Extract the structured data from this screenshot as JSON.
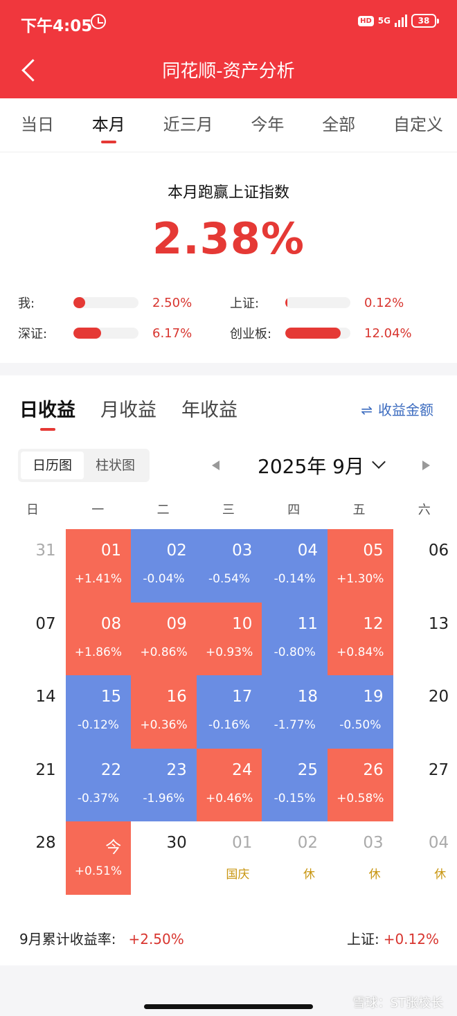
{
  "status_bar": {
    "time": "下午4:05",
    "hd": "HD",
    "network": "5G",
    "battery": "38"
  },
  "header": {
    "title": "同花顺-资产分析"
  },
  "range_tabs": [
    "当日",
    "本月",
    "近三月",
    "今年",
    "全部",
    "自定义"
  ],
  "summary": {
    "title": "本月跑赢上证指数",
    "value": "2.38%",
    "comparisons": [
      {
        "label": "我:",
        "value": "2.50%",
        "fill": 0.18
      },
      {
        "label": "上证:",
        "value": "0.12%",
        "fill": 0.02
      },
      {
        "label": "深证:",
        "value": "6.17%",
        "fill": 0.43
      },
      {
        "label": "创业板:",
        "value": "12.04%",
        "fill": 0.85
      }
    ]
  },
  "gain_tabs": [
    "日收益",
    "月收益",
    "年收益"
  ],
  "amount_toggle": {
    "icon": "swap-icon",
    "label": "收益金额"
  },
  "view_options": [
    "日历图",
    "柱状图"
  ],
  "month": "2025年 9月",
  "weekdays": [
    "日",
    "一",
    "二",
    "三",
    "四",
    "五",
    "六"
  ],
  "calendar": [
    [
      {
        "d": "31",
        "type": "muted"
      },
      {
        "d": "01",
        "pct": "+1.41%",
        "type": "up"
      },
      {
        "d": "02",
        "pct": "-0.04%",
        "type": "down"
      },
      {
        "d": "03",
        "pct": "-0.54%",
        "type": "down"
      },
      {
        "d": "04",
        "pct": "-0.14%",
        "type": "down"
      },
      {
        "d": "05",
        "pct": "+1.30%",
        "type": "up"
      },
      {
        "d": "06",
        "type": "plain"
      }
    ],
    [
      {
        "d": "07",
        "type": "plain"
      },
      {
        "d": "08",
        "pct": "+1.86%",
        "type": "up"
      },
      {
        "d": "09",
        "pct": "+0.86%",
        "type": "up"
      },
      {
        "d": "10",
        "pct": "+0.93%",
        "type": "up"
      },
      {
        "d": "11",
        "pct": "-0.80%",
        "type": "down"
      },
      {
        "d": "12",
        "pct": "+0.84%",
        "type": "up"
      },
      {
        "d": "13",
        "type": "plain"
      }
    ],
    [
      {
        "d": "14",
        "type": "plain"
      },
      {
        "d": "15",
        "pct": "-0.12%",
        "type": "down"
      },
      {
        "d": "16",
        "pct": "+0.36%",
        "type": "up"
      },
      {
        "d": "17",
        "pct": "-0.16%",
        "type": "down"
      },
      {
        "d": "18",
        "pct": "-1.77%",
        "type": "down"
      },
      {
        "d": "19",
        "pct": "-0.50%",
        "type": "down"
      },
      {
        "d": "20",
        "type": "plain"
      }
    ],
    [
      {
        "d": "21",
        "type": "plain"
      },
      {
        "d": "22",
        "pct": "-0.37%",
        "type": "down"
      },
      {
        "d": "23",
        "pct": "-1.96%",
        "type": "down"
      },
      {
        "d": "24",
        "pct": "+0.46%",
        "type": "up"
      },
      {
        "d": "25",
        "pct": "-0.15%",
        "type": "down"
      },
      {
        "d": "26",
        "pct": "+0.58%",
        "type": "up"
      },
      {
        "d": "27",
        "type": "plain"
      }
    ],
    [
      {
        "d": "28",
        "type": "plain"
      },
      {
        "d": "今",
        "pct": "+0.51%",
        "type": "up"
      },
      {
        "d": "30",
        "type": "plain"
      },
      {
        "d": "01",
        "note": "国庆",
        "type": "muted"
      },
      {
        "d": "02",
        "note": "休",
        "type": "muted"
      },
      {
        "d": "03",
        "note": "休",
        "type": "muted"
      },
      {
        "d": "04",
        "note": "休",
        "type": "muted"
      }
    ]
  ],
  "footer": {
    "cum_label": "9月累计收益率:",
    "cum_value": "+2.50%",
    "index_label": "上证:",
    "index_value": "+0.12%"
  },
  "watermark": "雪球：ST张校长",
  "colors": {
    "brand": "#f0373d",
    "up": "#f76a56",
    "down": "#6a8de3",
    "holiday": "#c8950f"
  }
}
